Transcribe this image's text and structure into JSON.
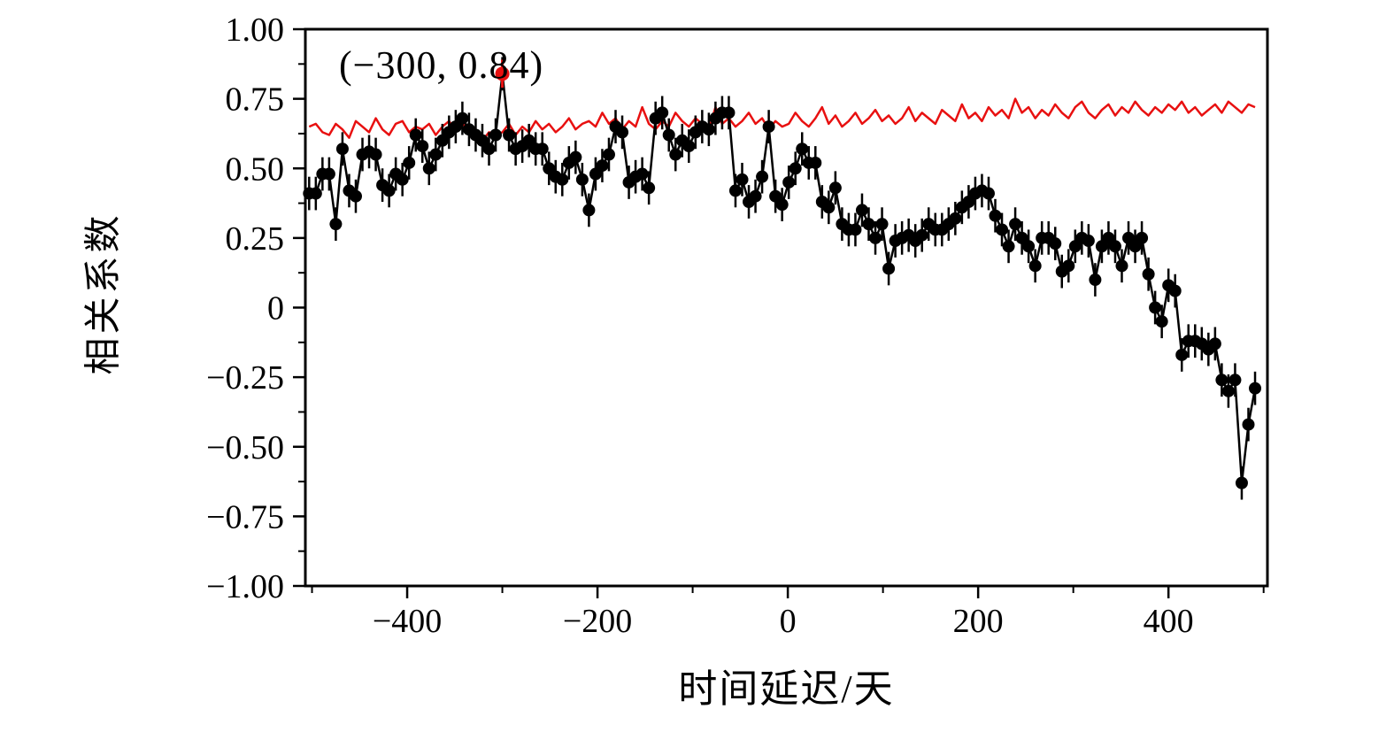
{
  "figure": {
    "background": "#ffffff",
    "frame_color": "#000000",
    "annotation": {
      "text": "(−300, 0.84)"
    }
  },
  "chart_data": {
    "type": "line",
    "title": "",
    "xlabel": "时间延迟/天",
    "ylabel": "相关系数",
    "xlim": [
      -507,
      504
    ],
    "ylim": [
      -1.0,
      1.0
    ],
    "grid": false,
    "legend": null,
    "x_ticks": [
      -400,
      -200,
      0,
      200,
      400
    ],
    "x_tick_labels": [
      "−400",
      "−200",
      "0",
      "200",
      "400"
    ],
    "x_minor_ticks": [
      -500,
      -300,
      -100,
      100,
      300,
      500
    ],
    "y_ticks": [
      1.0,
      0.75,
      0.5,
      0.25,
      0,
      -0.25,
      -0.5,
      -0.75,
      -1.0
    ],
    "y_tick_labels": [
      "1.00",
      "0.75",
      "0.50",
      "0.25",
      "0",
      "−0.25",
      "−0.50",
      "−0.75",
      "−1.00"
    ],
    "y_minor_ticks": [
      0.875,
      0.625,
      0.375,
      0.125,
      -0.125,
      -0.375,
      -0.625,
      -0.875
    ],
    "peak": {
      "x": -300,
      "y": 0.84,
      "color": "#e81010",
      "error": 0.05
    },
    "series": [
      {
        "name": "correlation-coefficient-curve",
        "color": "#000000",
        "marker": "circle",
        "marker_radius": 7,
        "line_width": 2.5,
        "error": 0.06,
        "x_start": -503,
        "x_step": 7,
        "y": [
          0.41,
          0.41,
          0.48,
          0.48,
          0.3,
          0.57,
          0.42,
          0.4,
          0.55,
          0.56,
          0.55,
          0.44,
          0.42,
          0.48,
          0.46,
          0.52,
          0.62,
          0.58,
          0.5,
          0.55,
          0.6,
          0.63,
          0.65,
          0.68,
          0.64,
          0.62,
          0.6,
          0.57,
          0.62,
          0.84,
          0.62,
          0.57,
          0.58,
          0.6,
          0.57,
          0.57,
          0.5,
          0.47,
          0.46,
          0.52,
          0.54,
          0.46,
          0.35,
          0.48,
          0.51,
          0.55,
          0.65,
          0.63,
          0.45,
          0.47,
          0.48,
          0.43,
          0.68,
          0.7,
          0.62,
          0.55,
          0.6,
          0.58,
          0.63,
          0.65,
          0.64,
          0.68,
          0.7,
          0.7,
          0.42,
          0.46,
          0.38,
          0.4,
          0.47,
          0.65,
          0.4,
          0.37,
          0.45,
          0.5,
          0.57,
          0.52,
          0.52,
          0.38,
          0.36,
          0.43,
          0.3,
          0.28,
          0.28,
          0.35,
          0.3,
          0.25,
          0.3,
          0.14,
          0.24,
          0.25,
          0.26,
          0.24,
          0.26,
          0.3,
          0.28,
          0.28,
          0.3,
          0.32,
          0.36,
          0.38,
          0.41,
          0.42,
          0.41,
          0.33,
          0.28,
          0.22,
          0.3,
          0.25,
          0.22,
          0.15,
          0.25,
          0.25,
          0.23,
          0.13,
          0.15,
          0.22,
          0.25,
          0.24,
          0.1,
          0.22,
          0.25,
          0.22,
          0.15,
          0.25,
          0.22,
          0.25,
          0.12,
          0.0,
          -0.05,
          0.08,
          0.06,
          -0.17,
          -0.12,
          -0.12,
          -0.13,
          -0.15,
          -0.13,
          -0.26,
          -0.3,
          -0.26,
          -0.63,
          -0.42,
          -0.29
        ]
      },
      {
        "name": "significance-level-curve",
        "color": "#e81010",
        "marker": "none",
        "line_width": 2.5,
        "error": 0,
        "x_start": -503,
        "x_step": 7,
        "y": [
          0.65,
          0.66,
          0.63,
          0.62,
          0.66,
          0.64,
          0.61,
          0.67,
          0.65,
          0.63,
          0.68,
          0.64,
          0.62,
          0.66,
          0.67,
          0.63,
          0.65,
          0.64,
          0.66,
          0.62,
          0.65,
          0.67,
          0.63,
          0.66,
          0.64,
          0.62,
          0.6,
          0.63,
          0.62,
          0.63,
          0.66,
          0.62,
          0.65,
          0.63,
          0.67,
          0.64,
          0.66,
          0.63,
          0.65,
          0.68,
          0.64,
          0.66,
          0.67,
          0.65,
          0.7,
          0.66,
          0.68,
          0.64,
          0.67,
          0.65,
          0.72,
          0.66,
          0.64,
          0.67,
          0.65,
          0.7,
          0.67,
          0.65,
          0.68,
          0.66,
          0.64,
          0.72,
          0.66,
          0.68,
          0.65,
          0.67,
          0.7,
          0.66,
          0.68,
          0.64,
          0.67,
          0.65,
          0.66,
          0.7,
          0.67,
          0.65,
          0.68,
          0.72,
          0.66,
          0.69,
          0.65,
          0.67,
          0.7,
          0.66,
          0.68,
          0.71,
          0.67,
          0.69,
          0.66,
          0.68,
          0.72,
          0.67,
          0.7,
          0.68,
          0.66,
          0.71,
          0.69,
          0.67,
          0.73,
          0.68,
          0.7,
          0.67,
          0.72,
          0.69,
          0.71,
          0.68,
          0.75,
          0.7,
          0.72,
          0.68,
          0.71,
          0.69,
          0.73,
          0.7,
          0.68,
          0.72,
          0.74,
          0.7,
          0.68,
          0.71,
          0.73,
          0.69,
          0.72,
          0.7,
          0.74,
          0.71,
          0.69,
          0.72,
          0.7,
          0.73,
          0.71,
          0.74,
          0.7,
          0.72,
          0.69,
          0.71,
          0.73,
          0.7,
          0.74,
          0.72,
          0.7,
          0.73,
          0.72
        ]
      }
    ]
  }
}
